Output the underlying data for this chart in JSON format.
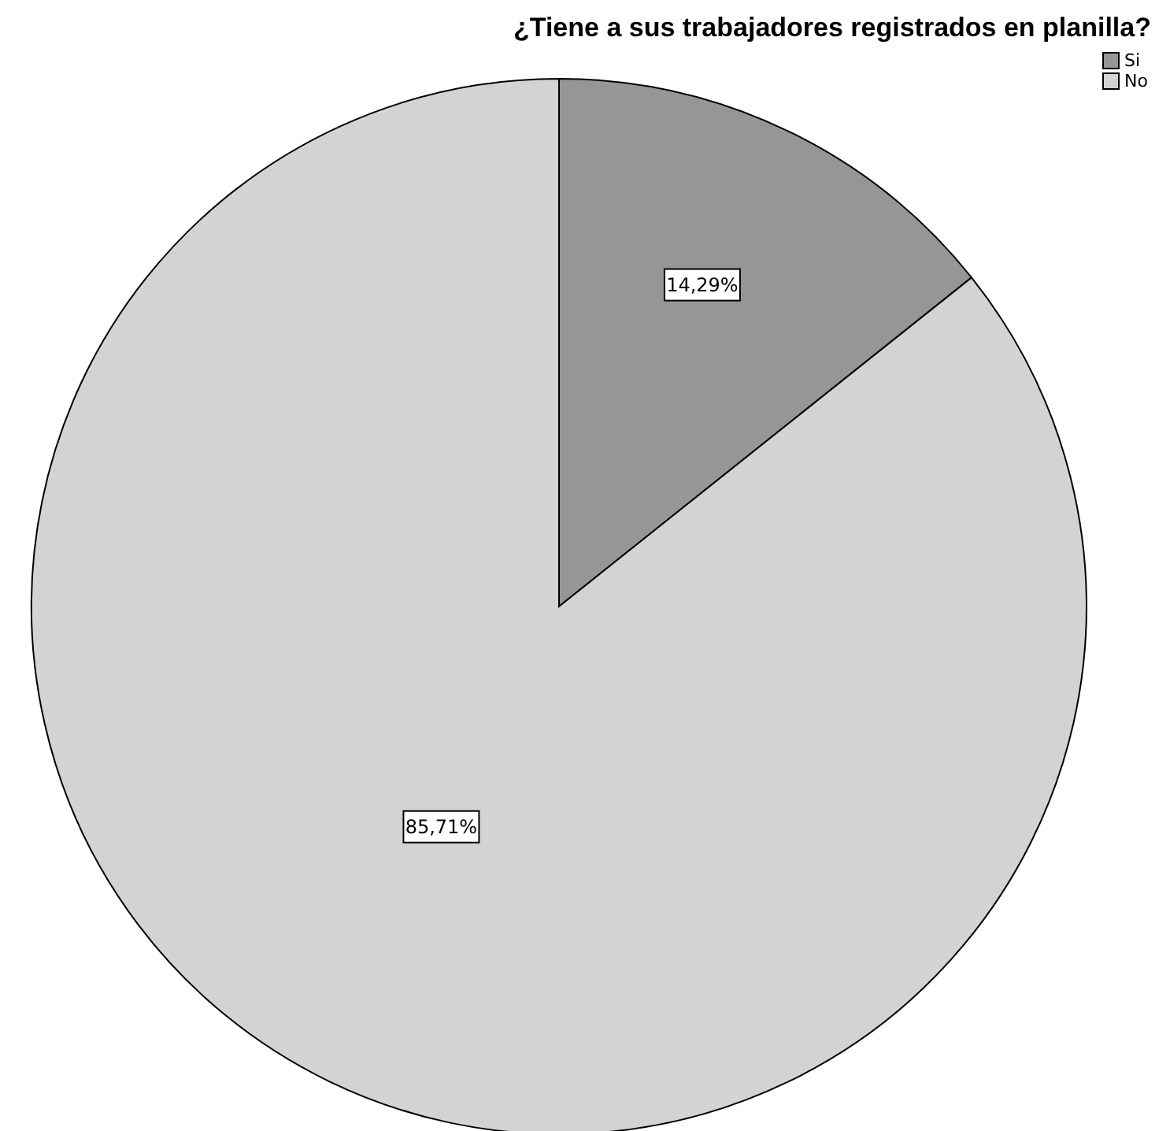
{
  "chart_data": {
    "type": "pie",
    "title": "¿Tiene a sus trabajadores registrados en planilla?",
    "categories": [
      "Si",
      "No"
    ],
    "values": [
      14.29,
      85.71
    ],
    "colors": [
      "#969696",
      "#d3d3d3"
    ],
    "value_labels": [
      "14,29%",
      "85,71%"
    ],
    "legend": "top right"
  }
}
